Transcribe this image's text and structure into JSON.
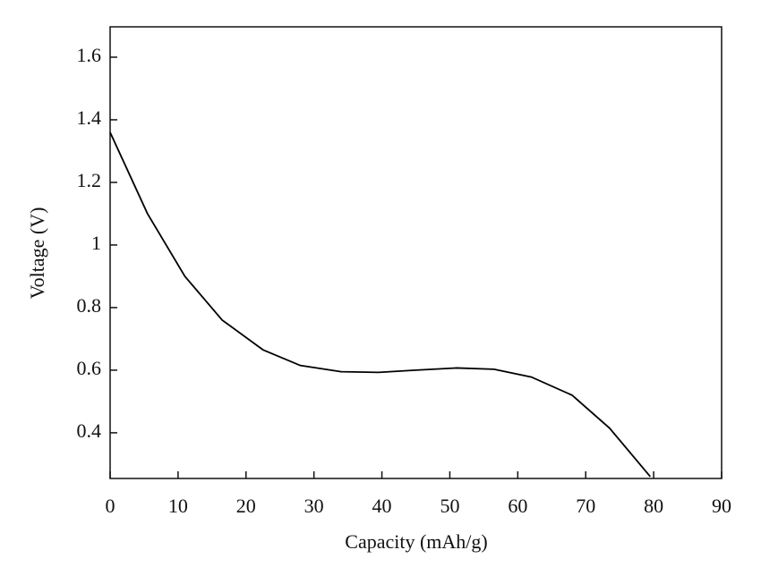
{
  "chart_data": {
    "type": "line",
    "x_label": "Capacity (mAh/g)",
    "y_label": "Voltage (V)",
    "x": [
      0,
      5.5,
      11,
      16.5,
      22.5,
      28,
      34,
      39.5,
      45,
      51,
      56.5,
      62,
      68,
      73.5,
      79.5
    ],
    "series": [
      {
        "color": "#000000",
        "values": [
          1.36,
          1.1,
          0.9,
          0.76,
          0.665,
          0.615,
          0.595,
          0.593,
          0.6,
          0.607,
          0.603,
          0.578,
          0.52,
          0.415,
          0.26
        ]
      }
    ],
    "xlim": [
      0,
      90
    ],
    "xticks": [
      0,
      10,
      20,
      30,
      40,
      50,
      60,
      70,
      80,
      90
    ],
    "ylim": [
      0.254,
      1.697
    ],
    "yticks": [
      0.4,
      0.6,
      0.8,
      1,
      1.2,
      1.4,
      1.6
    ],
    "grid": false
  }
}
